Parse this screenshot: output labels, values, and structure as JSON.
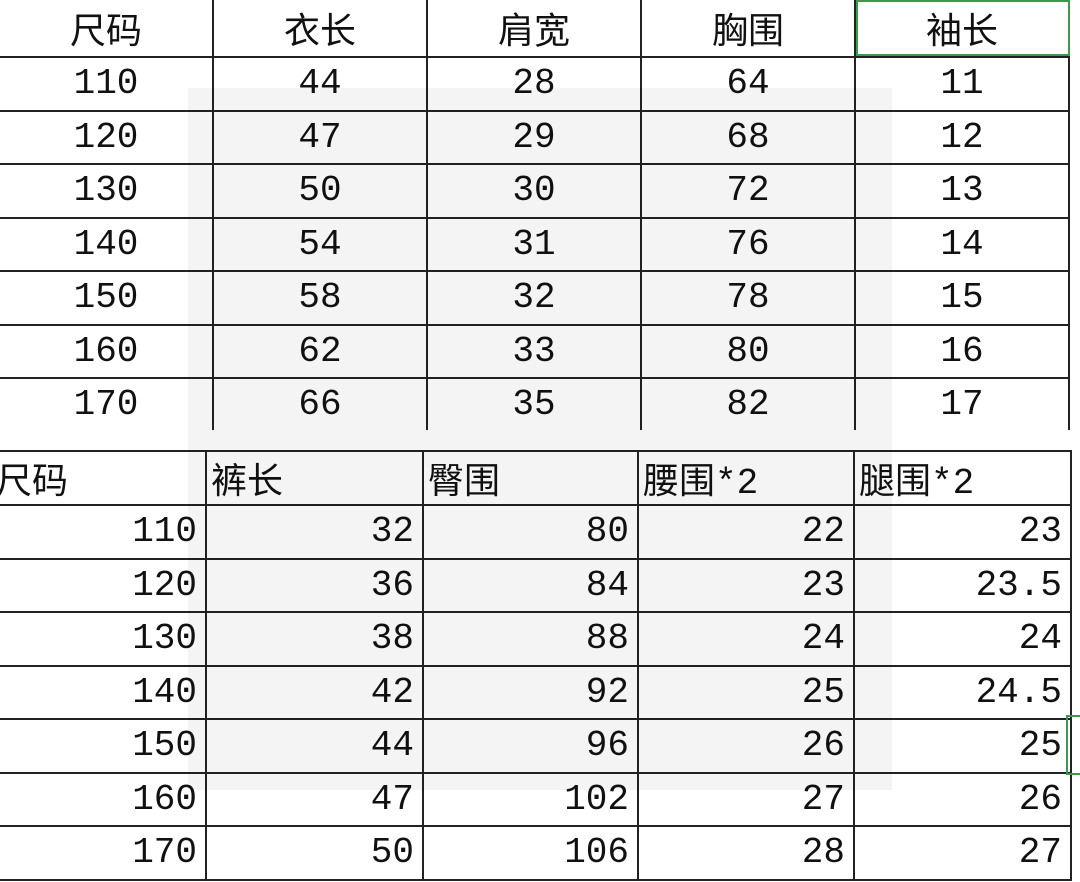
{
  "top_table": {
    "headers": [
      "尺码",
      "衣长",
      "肩宽",
      "胸围",
      "袖长"
    ],
    "rows": [
      [
        "110",
        "44",
        "28",
        "64",
        "11"
      ],
      [
        "120",
        "47",
        "29",
        "68",
        "12"
      ],
      [
        "130",
        "50",
        "30",
        "72",
        "13"
      ],
      [
        "140",
        "54",
        "31",
        "76",
        "14"
      ],
      [
        "150",
        "58",
        "32",
        "78",
        "15"
      ],
      [
        "160",
        "62",
        "33",
        "80",
        "16"
      ],
      [
        "170",
        "66",
        "35",
        "82",
        "17"
      ]
    ]
  },
  "bottom_table": {
    "headers": [
      "尺码",
      "裤长",
      "臀围",
      "腰围*2",
      "腿围*2"
    ],
    "rows": [
      [
        "110",
        "32",
        "80",
        "22",
        "23"
      ],
      [
        "120",
        "36",
        "84",
        "23",
        "23.5"
      ],
      [
        "130",
        "38",
        "88",
        "24",
        "24"
      ],
      [
        "140",
        "42",
        "92",
        "25",
        "24.5"
      ],
      [
        "150",
        "44",
        "96",
        "26",
        "25"
      ],
      [
        "160",
        "47",
        "102",
        "27",
        "26"
      ],
      [
        "170",
        "50",
        "106",
        "28",
        "27"
      ]
    ]
  },
  "colors": {
    "selection": "#3c9a4a",
    "grid": "#222222"
  }
}
